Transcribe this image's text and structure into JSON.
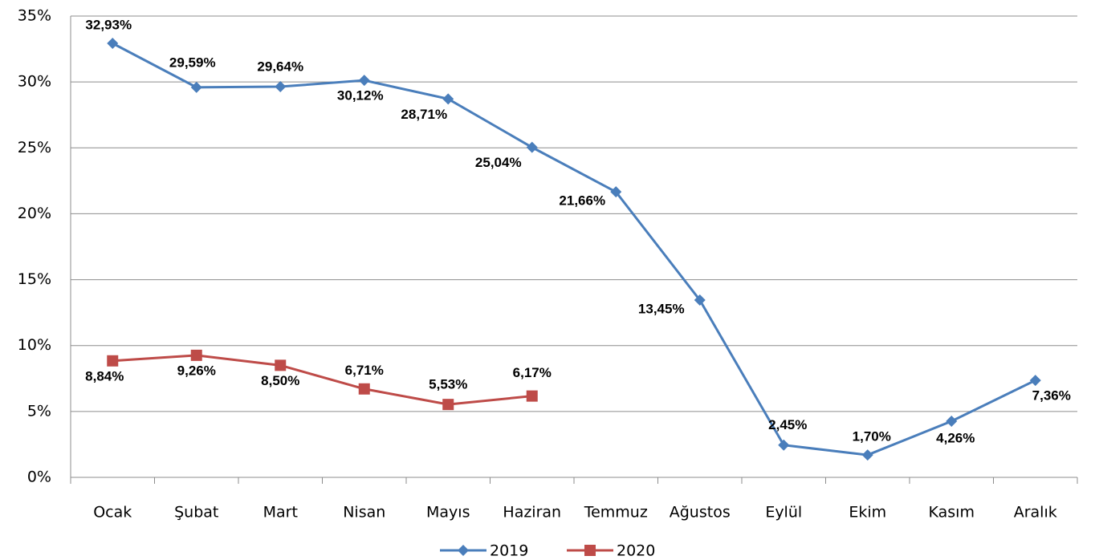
{
  "chart_data": {
    "type": "line",
    "categories": [
      "Ocak",
      "Şubat",
      "Mart",
      "Nisan",
      "Mayıs",
      "Haziran",
      "Temmuz",
      "Ağustos",
      "Eylül",
      "Ekim",
      "Kasım",
      "Aralık"
    ],
    "series": [
      {
        "name": "2019",
        "color": "#4a7ebb",
        "marker": "diamond",
        "values": [
          32.93,
          29.59,
          29.64,
          30.12,
          28.71,
          25.04,
          21.66,
          13.45,
          2.45,
          1.7,
          4.26,
          7.36
        ],
        "value_labels": [
          "32,93%",
          "29,59%",
          "29,64%",
          "30,12%",
          "28,71%",
          "25,04%",
          "21,66%",
          "13,45%",
          "2,45%",
          "1,70%",
          "4,26%",
          "7,36%"
        ]
      },
      {
        "name": "2020",
        "color": "#be4b48",
        "marker": "square",
        "values": [
          8.84,
          9.26,
          8.5,
          6.71,
          5.53,
          6.17,
          null,
          null,
          null,
          null,
          null,
          null
        ],
        "value_labels": [
          "8,84%",
          "9,26%",
          "8,50%",
          "6,71%",
          "5,53%",
          "6,17%",
          null,
          null,
          null,
          null,
          null,
          null
        ]
      }
    ],
    "ylim": [
      0,
      35
    ],
    "yticks": [
      {
        "value": 0,
        "label": "0%"
      },
      {
        "value": 5,
        "label": "5%"
      },
      {
        "value": 10,
        "label": "10%"
      },
      {
        "value": 15,
        "label": "15%"
      },
      {
        "value": 20,
        "label": "20%"
      },
      {
        "value": 25,
        "label": "25%"
      },
      {
        "value": 30,
        "label": "30%"
      },
      {
        "value": 35,
        "label": "35%"
      }
    ],
    "grid": true,
    "legend": "bottom"
  }
}
